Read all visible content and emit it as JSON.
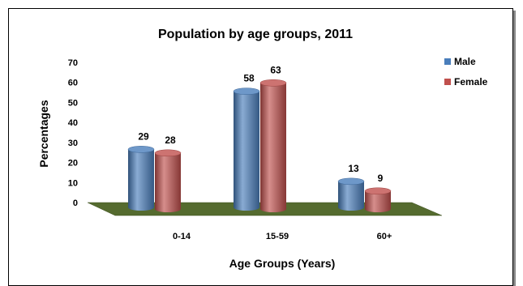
{
  "chart_data": {
    "type": "bar",
    "title": "Population by age groups, 2011",
    "xlabel": "Age Groups (Years)",
    "ylabel": "Percentages",
    "categories": [
      "0-14",
      "15-59",
      "60+"
    ],
    "series": [
      {
        "name": "Male",
        "values": [
          29,
          58,
          13
        ],
        "color": "#4a7ebb"
      },
      {
        "name": "Female",
        "values": [
          28,
          63,
          9
        ],
        "color": "#c0504d"
      }
    ],
    "ylim": [
      0,
      70
    ],
    "yticks": [
      "0",
      "10",
      "20",
      "30",
      "40",
      "50",
      "60",
      "70"
    ],
    "data_labels": [
      [
        "29",
        "58",
        "13"
      ],
      [
        "28",
        "63",
        "9"
      ]
    ],
    "grid": false,
    "legend": "right",
    "floor_color": "#556b2f"
  }
}
